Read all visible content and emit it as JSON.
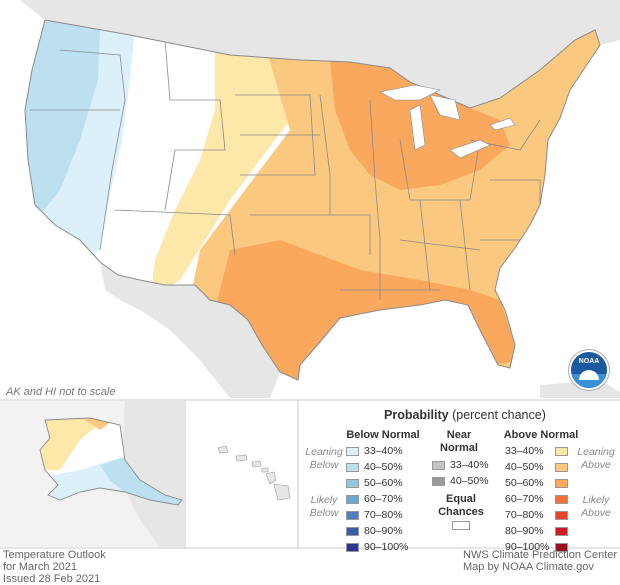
{
  "note_scale": "AK and HI not to scale",
  "footer_left": [
    "Temperature Outlook",
    "for March 2021",
    "Issued 28 Feb 2021"
  ],
  "footer_right": [
    "NWS Climate Prediction Center",
    "Map by NOAA Climate.gov"
  ],
  "logo_text": "NOAA",
  "legend": {
    "title_bold": "Probability",
    "title_rest": "(percent chance)",
    "below_header": "Below Normal",
    "near_header": [
      "Near",
      "Normal"
    ],
    "above_header": "Above Normal",
    "leaning_below": [
      "Leaning",
      "Below"
    ],
    "likely_below": [
      "Likely",
      "Below"
    ],
    "leaning_above": [
      "Leaning",
      "Above"
    ],
    "likely_above": [
      "Likely",
      "Above"
    ],
    "equal_chances": [
      "Equal",
      "Chances"
    ],
    "below": [
      {
        "label": "33–40%",
        "color": "#dcf0fa"
      },
      {
        "label": "40–50%",
        "color": "#bde0f0"
      },
      {
        "label": "50–60%",
        "color": "#93c8e3"
      },
      {
        "label": "60–70%",
        "color": "#6aa6d3"
      },
      {
        "label": "70–80%",
        "color": "#4f7fc0"
      },
      {
        "label": "80–90%",
        "color": "#3a5aab"
      },
      {
        "label": "90–100%",
        "color": "#2a3590"
      }
    ],
    "near": [
      {
        "label": "33–40%",
        "color": "#c4c4c4"
      },
      {
        "label": "40–50%",
        "color": "#9a9a9a"
      }
    ],
    "above": [
      {
        "label": "33–40%",
        "color": "#fde8a9"
      },
      {
        "label": "40–50%",
        "color": "#fbc87f"
      },
      {
        "label": "50–60%",
        "color": "#f9a85e"
      },
      {
        "label": "60–70%",
        "color": "#f2703c"
      },
      {
        "label": "70–80%",
        "color": "#e4452e"
      },
      {
        "label": "80–90%",
        "color": "#c91a25"
      },
      {
        "label": "90–100%",
        "color": "#9a0f1f"
      }
    ],
    "equal_color": "#ffffff"
  },
  "colors": {
    "ocean": "#ffffff",
    "land_outside": "#e6e6e6",
    "state_border": "#8a8a8a",
    "panel_border": "#cccccc"
  }
}
